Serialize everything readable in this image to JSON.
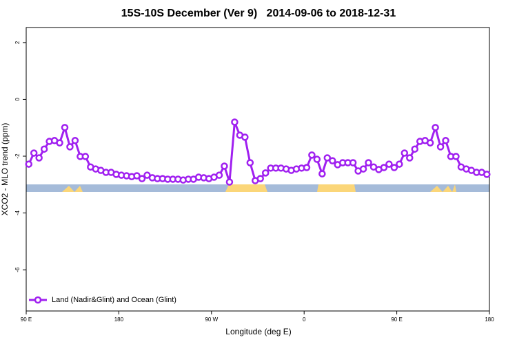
{
  "chart_data": {
    "type": "line",
    "title": "15S-10S December (Ver 9)   2014-09-06 to 2018-12-31",
    "xlabel": "Longitude (deg E)",
    "ylabel": "XCO2 - MLO trend (ppm)",
    "xlim": [
      90,
      540
    ],
    "xticks": [
      {
        "value": 90,
        "label": "90 E"
      },
      180,
      {
        "value": 270,
        "label": "90 W"
      },
      {
        "value": 360,
        "label": "0"
      },
      {
        "value": 450,
        "label": "90 E"
      },
      {
        "value": 540,
        "label": "180"
      }
    ],
    "ylim": [
      -7.45,
      2.53
    ],
    "yticks": [
      2,
      0,
      -2,
      -4,
      -6
    ],
    "legend": "bottom-left",
    "x": [
      92.5,
      97.5,
      102.5,
      107.5,
      112.5,
      117.5,
      122.5,
      127.5,
      132.5,
      137.5,
      142.5,
      147.5,
      152.5,
      157.5,
      162.5,
      167.5,
      172.5,
      177.5,
      182.5,
      187.5,
      192.5,
      197.5,
      202.5,
      207.5,
      212.5,
      217.5,
      222.5,
      227.5,
      232.5,
      237.5,
      242.5,
      247.5,
      252.5,
      257.5,
      262.5,
      267.5,
      272.5,
      277.5,
      282.5,
      287.5,
      292.5,
      297.5,
      302.5,
      307.5,
      312.5,
      317.5,
      322.5,
      327.5,
      332.5,
      337.5,
      342.5,
      347.5,
      352.5,
      357.5,
      362.5,
      367.5,
      372.5,
      377.5,
      382.5,
      387.5,
      392.5,
      397.5,
      402.5,
      407.5,
      412.5,
      417.5,
      422.5,
      427.5,
      432.5,
      437.5,
      442.5,
      447.5,
      452.5,
      457.5,
      462.5,
      467.5,
      472.5,
      477.5,
      482.5,
      487.5,
      492.5,
      497.5,
      502.5,
      507.5,
      512.5,
      517.5,
      522.5,
      527.5,
      532.5,
      537.5
    ],
    "series": [
      {
        "name": "Land (Nadir&Glint) and Ocean (Glint)",
        "color": "#a020f0",
        "values": [
          -2.28,
          -1.89,
          -2.06,
          -1.75,
          -1.48,
          -1.45,
          -1.53,
          -0.99,
          -1.67,
          -1.45,
          -2.01,
          -2.01,
          -2.38,
          -2.45,
          -2.5,
          -2.57,
          -2.57,
          -2.64,
          -2.67,
          -2.69,
          -2.72,
          -2.69,
          -2.79,
          -2.67,
          -2.76,
          -2.79,
          -2.79,
          -2.81,
          -2.81,
          -2.81,
          -2.84,
          -2.81,
          -2.81,
          -2.74,
          -2.76,
          -2.79,
          -2.74,
          -2.67,
          -2.35,
          -2.91,
          -0.8,
          -1.26,
          -1.33,
          -2.23,
          -2.86,
          -2.79,
          -2.59,
          -2.42,
          -2.42,
          -2.42,
          -2.45,
          -2.5,
          -2.45,
          -2.42,
          -2.4,
          -1.96,
          -2.11,
          -2.62,
          -2.06,
          -2.16,
          -2.3,
          -2.23,
          -2.23,
          -2.23,
          -2.52,
          -2.45,
          -2.23,
          -2.38,
          -2.47,
          -2.4,
          -2.28,
          -2.4,
          -2.28,
          -1.89,
          -2.06,
          -1.75,
          -1.48,
          -1.45,
          -1.53,
          -0.99,
          -1.67,
          -1.45,
          -2.01,
          -2.01,
          -2.38,
          -2.45,
          -2.5,
          -2.57,
          -2.57,
          -2.64
        ]
      }
    ]
  }
}
